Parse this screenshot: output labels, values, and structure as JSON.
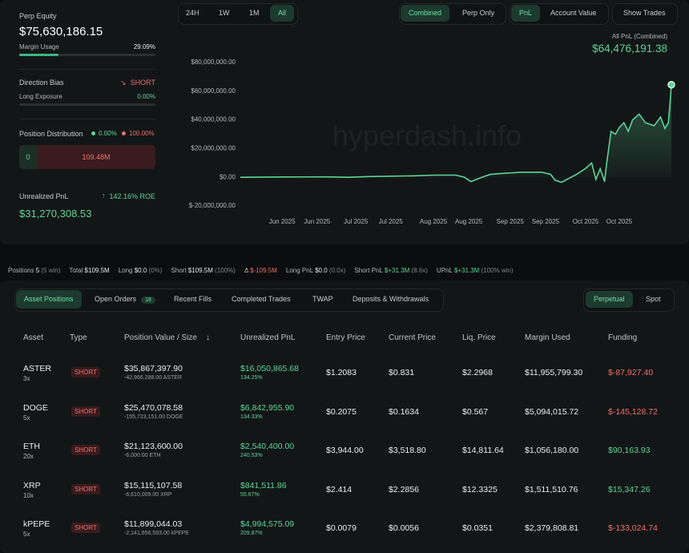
{
  "summary": {
    "perp_equity_label": "Perp Equity",
    "perp_equity": "$75,630,186.15",
    "margin_usage_label": "Margin Usage",
    "margin_usage": "29.09%",
    "direction_bias_label": "Direction Bias",
    "direction_bias": "SHORT",
    "long_exposure_label": "Long Exposure",
    "long_exposure": "0.00%",
    "position_distribution_label": "Position Distribution",
    "distribution_long_pct": "0.00%",
    "distribution_short_pct": "100.00%",
    "distribution_long_value": "0",
    "distribution_short_value": "109.48M",
    "unrealized_pnl_label": "Unrealized PnL",
    "roe": "142.16% ROE",
    "unrealized_pnl": "$31,270,308.53"
  },
  "time_tabs": [
    "24H",
    "1W",
    "1M",
    "All"
  ],
  "mode_tabs": [
    "Combined",
    "Perp Only"
  ],
  "view_tabs": [
    "PnL",
    "Account Value",
    "Show Trades"
  ],
  "pnl_caption": "All PnL (Combined)",
  "pnl_value": "$64,476,191.38",
  "watermark": "hyperdash.info",
  "chart_data": {
    "type": "line",
    "color": "#5ed49a",
    "grid": false,
    "xlim": [
      0,
      100
    ],
    "xticks": [
      {
        "value": 9.7,
        "label": "Jun 2025"
      },
      {
        "value": 17.8,
        "label": "Jun 2025"
      },
      {
        "value": 26.8,
        "label": "Jul 2025"
      },
      {
        "value": 34.9,
        "label": "Jul 2025"
      },
      {
        "value": 44.8,
        "label": "Aug 2025"
      },
      {
        "value": 53,
        "label": "Aug 2025"
      },
      {
        "value": 62.6,
        "label": "Sep 2025"
      },
      {
        "value": 70.8,
        "label": "Sep 2025"
      },
      {
        "value": 80.1,
        "label": "Oct 2025"
      },
      {
        "value": 87.9,
        "label": "Oct 2025"
      }
    ],
    "ylim": [
      -20000000,
      80000000
    ],
    "yticks": [
      {
        "value": -20000000,
        "label": "$-20,000,000.00"
      },
      {
        "value": 0,
        "label": "$0.00"
      },
      {
        "value": 20000000,
        "label": "$20,000,000.00"
      },
      {
        "value": 40000000,
        "label": "$40,000,000.00"
      },
      {
        "value": 60000000,
        "label": "$60,000,000.00"
      },
      {
        "value": 80000000,
        "label": "$80,000,000.00"
      }
    ],
    "x": [
      0,
      10,
      20,
      25,
      30,
      40,
      45,
      50,
      52,
      53.5,
      56,
      58,
      60,
      65,
      70,
      72,
      73,
      74.5,
      78,
      80,
      81.5,
      82.5,
      83.5,
      84.5,
      85,
      86,
      87,
      88,
      89,
      90,
      91,
      92.5,
      94,
      96,
      97.5,
      98.5,
      99.3,
      99.7,
      100
    ],
    "values": [
      0,
      200000,
      300000,
      0,
      500000,
      1000000,
      1500000,
      1500000,
      0,
      -3000000,
      0,
      2000000,
      2500000,
      3500000,
      3500000,
      2000000,
      -2000000,
      -3500000,
      2000000,
      6000000,
      10000000,
      -1500000,
      6000000,
      -3000000,
      10000000,
      32000000,
      30000000,
      35000000,
      38000000,
      32000000,
      40000000,
      44000000,
      38000000,
      36000000,
      42000000,
      34000000,
      38000000,
      52000000,
      64476191.38
    ]
  },
  "stats": [
    {
      "label": "Positions",
      "value": "5",
      "note": "(5 win)"
    },
    {
      "label": "Total",
      "value": "$109.5M"
    },
    {
      "label": "Long",
      "value": "$0.0",
      "note": "(0%)"
    },
    {
      "label": "Short",
      "value": "$109.5M",
      "note": "(100%)"
    },
    {
      "label": "Δ",
      "value": "$-109.5M"
    },
    {
      "label": "Long PnL",
      "value": "$0.0",
      "note": "(0.0x)"
    },
    {
      "label": "Short PnL",
      "value": "$+31.3M",
      "note": "(8.6x)"
    },
    {
      "label": "UPnL",
      "value": "$+31.3M",
      "note": "(100% win)"
    }
  ],
  "section_tabs": [
    "Asset Positions",
    "Open Orders",
    "Recent Fills",
    "Completed Trades",
    "TWAP",
    "Deposits & Withdrawals"
  ],
  "open_orders_count": "18",
  "market_tabs": [
    "Perpetual",
    "Spot"
  ],
  "table": {
    "headers": [
      "Asset",
      "Type",
      "Position Value / Size",
      "Unrealized PnL",
      "Entry Price",
      "Current Price",
      "Liq. Price",
      "Margin Used",
      "Funding"
    ],
    "rows": [
      {
        "asset": "ASTER",
        "leverage": "3x",
        "type": "SHORT",
        "value": "$35,867,397.90",
        "size": "-42,966,288.00 ASTER",
        "pnl": "$16,050,865.68",
        "pnl_pct": "134.25%",
        "entry": "$1.2083",
        "current": "$0.831",
        "liq": "$2.2968",
        "margin": "$11,955,799.30",
        "funding": "$-87,927.40"
      },
      {
        "asset": "DOGE",
        "leverage": "5x",
        "type": "SHORT",
        "value": "$25,470,078.58",
        "size": "-155,723,151.00 DOGE",
        "pnl": "$6,842,955.90",
        "pnl_pct": "134.33%",
        "entry": "$0.2075",
        "current": "$0.1634",
        "liq": "$0.567",
        "margin": "$5,094,015.72",
        "funding": "$-145,128.72"
      },
      {
        "asset": "ETH",
        "leverage": "20x",
        "type": "SHORT",
        "value": "$21,123,600.00",
        "size": "-6,000.00 ETH",
        "pnl": "$2,540,400.00",
        "pnl_pct": "240.53%",
        "entry": "$3,944.00",
        "current": "$3,518.80",
        "liq": "$14,811.64",
        "margin": "$1,056,180.00",
        "funding": "$90,163.93"
      },
      {
        "asset": "XRP",
        "leverage": "10x",
        "type": "SHORT",
        "value": "$15,115,107.58",
        "size": "-6,610,009.00 XRP",
        "pnl": "$841,511.86",
        "pnl_pct": "55.67%",
        "entry": "$2.414",
        "current": "$2.2856",
        "liq": "$12.3325",
        "margin": "$1,511,510.76",
        "funding": "$15,347.26"
      },
      {
        "asset": "kPEPE",
        "leverage": "5x",
        "type": "SHORT",
        "value": "$11,899,044.03",
        "size": "-2,141,656,593.00 kPEPE",
        "pnl": "$4,994,575.09",
        "pnl_pct": "209.87%",
        "entry": "$0.0079",
        "current": "$0.0056",
        "liq": "$0.0351",
        "margin": "$2,379,808.81",
        "funding": "$-133,024.74"
      }
    ]
  }
}
